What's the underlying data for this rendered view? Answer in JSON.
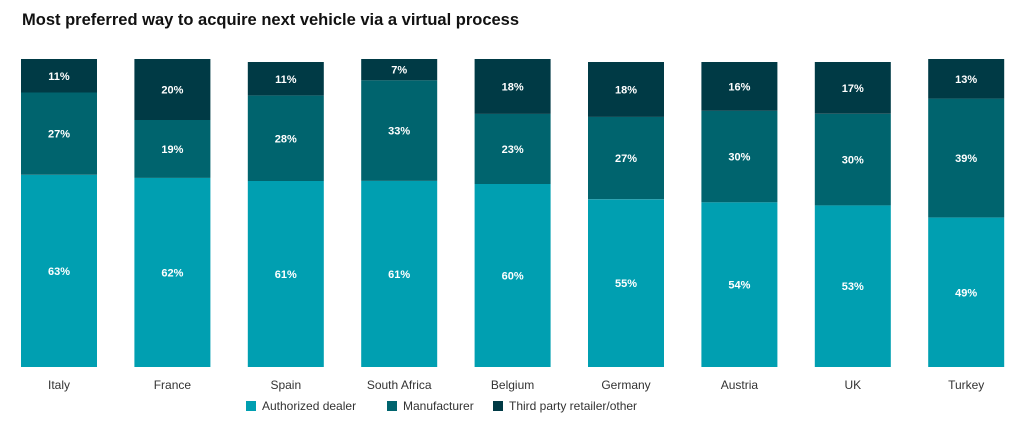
{
  "chart_data": {
    "type": "bar",
    "stacked": true,
    "title": "Most preferred way to acquire next vehicle via a virtual process",
    "categories": [
      "Italy",
      "France",
      "Spain",
      "South Africa",
      "Belgium",
      "Germany",
      "Austria",
      "UK",
      "Turkey"
    ],
    "series": [
      {
        "name": "Authorized dealer",
        "color": "#009fb1",
        "values": [
          63,
          62,
          61,
          61,
          60,
          55,
          54,
          53,
          49
        ],
        "labels": [
          "63%",
          "62%",
          "61%",
          "61%",
          "60%",
          "55%",
          "54%",
          "53%",
          "49%"
        ]
      },
      {
        "name": "Manufacturer",
        "color": "#00646e",
        "values": [
          27,
          19,
          28,
          33,
          23,
          27,
          30,
          30,
          39
        ],
        "labels": [
          "27%",
          "19%",
          "28%",
          "33%",
          "23%",
          "27%",
          "30%",
          "30%",
          "39%"
        ]
      },
      {
        "name": "Third party retailer/other",
        "color": "#003a45",
        "values": [
          11,
          20,
          11,
          7,
          18,
          18,
          16,
          17,
          13
        ],
        "labels": [
          "11%",
          "20%",
          "11%",
          "7%",
          "18%",
          "18%",
          "16%",
          "17%",
          "13%"
        ]
      }
    ],
    "ylim": [
      0,
      101
    ],
    "grid": false,
    "legend_position": "bottom"
  }
}
